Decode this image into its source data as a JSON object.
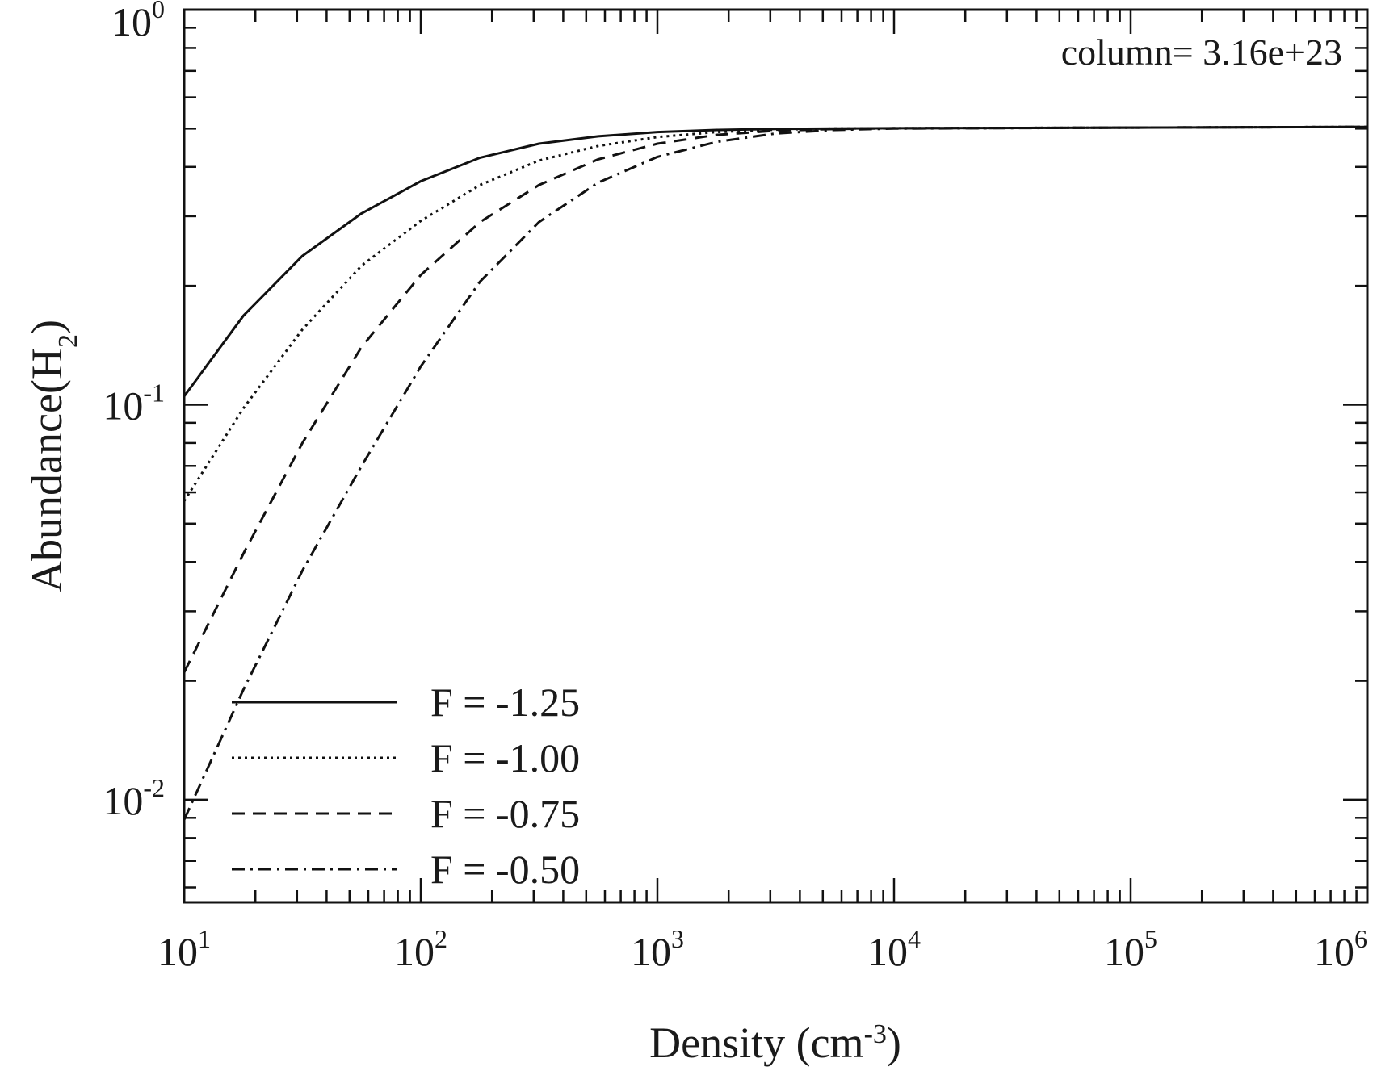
{
  "chart_data": {
    "type": "line",
    "title": "",
    "annotation": "column= 3.16e+23",
    "xlabel": {
      "base": "Density (cm",
      "sup": "-3",
      "close": ")"
    },
    "ylabel": {
      "base": "Abundance(H",
      "sub": "2",
      "close": ")"
    },
    "xscale": "log",
    "yscale": "log",
    "xlim": [
      10,
      1000000
    ],
    "ylim": [
      0.0055,
      1.0
    ],
    "xticks": [
      {
        "value": 10,
        "base": "10",
        "exp": "1"
      },
      {
        "value": 100,
        "base": "10",
        "exp": "2"
      },
      {
        "value": 1000,
        "base": "10",
        "exp": "3"
      },
      {
        "value": 10000,
        "base": "10",
        "exp": "4"
      },
      {
        "value": 100000,
        "base": "10",
        "exp": "5"
      },
      {
        "value": 1000000,
        "base": "10",
        "exp": "6"
      }
    ],
    "yticks": [
      {
        "value": 0.01,
        "base": "10",
        "exp": "-2"
      },
      {
        "value": 0.1,
        "base": "10",
        "exp": "-1"
      },
      {
        "value": 1.0,
        "base": "10",
        "exp": "0"
      }
    ],
    "legend_position": "bottom-left",
    "x": [
      10,
      17.8,
      31.6,
      56.2,
      100,
      178,
      316,
      562,
      1000,
      1780,
      3160,
      5620,
      10000,
      100000,
      1000000
    ],
    "series": [
      {
        "name": "F = -1.25",
        "dash": "solid",
        "values": [
          0.105,
          0.168,
          0.238,
          0.305,
          0.368,
          0.422,
          0.458,
          0.478,
          0.49,
          0.496,
          0.499,
          0.5,
          0.501,
          0.503,
          0.505
        ]
      },
      {
        "name": "F = -1.00",
        "dash": "dotted",
        "values": [
          0.057,
          0.098,
          0.155,
          0.225,
          0.292,
          0.36,
          0.415,
          0.452,
          0.476,
          0.49,
          0.497,
          0.5,
          0.501,
          0.503,
          0.505
        ]
      },
      {
        "name": "F = -0.75",
        "dash": "dashed",
        "values": [
          0.021,
          0.042,
          0.08,
          0.14,
          0.213,
          0.29,
          0.36,
          0.418,
          0.458,
          0.482,
          0.494,
          0.499,
          0.501,
          0.503,
          0.505
        ]
      },
      {
        "name": "F = -0.50",
        "dash": "dashdot",
        "values": [
          0.0089,
          0.019,
          0.038,
          0.07,
          0.125,
          0.205,
          0.29,
          0.365,
          0.424,
          0.463,
          0.486,
          0.496,
          0.5,
          0.503,
          0.505
        ]
      }
    ]
  }
}
